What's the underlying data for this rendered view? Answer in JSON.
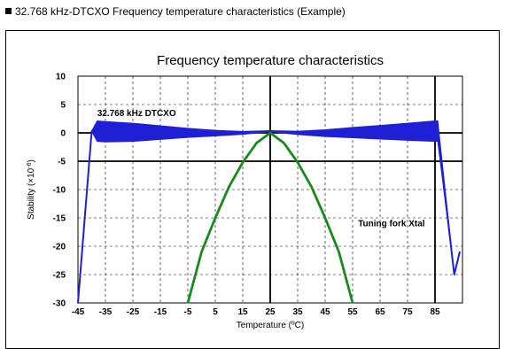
{
  "heading": "32.768 kHz-DTCXO Frequency temperature characteristics (Example)",
  "chart_data": {
    "type": "line",
    "title": "Frequency temperature characteristics",
    "xlabel": "Temperature (ºC)",
    "ylabel_prefix": "Stability (×10",
    "ylabel_exp": "-6",
    "ylabel_suffix": ")",
    "xlim": [
      -45,
      95
    ],
    "ylim": [
      -30,
      10
    ],
    "x_ticks": [
      -45,
      -35,
      -25,
      -15,
      -5,
      5,
      15,
      25,
      35,
      45,
      55,
      65,
      75,
      85
    ],
    "y_ticks": [
      10,
      5,
      0,
      -5,
      -10,
      -15,
      -20,
      -25,
      -30
    ],
    "grid": true,
    "series": [
      {
        "name": "32.768 kHz DTCXO",
        "color": "#1f1fd6",
        "x": [
          -45,
          -40,
          -38,
          -35,
          -25,
          -15,
          -5,
          5,
          15,
          25,
          35,
          45,
          55,
          65,
          75,
          85,
          86,
          92,
          94
        ],
        "y_center": [
          -30,
          0.3,
          0.3,
          0.2,
          0.1,
          0.05,
          0.0,
          -0.05,
          0.0,
          0.3,
          0.0,
          -0.05,
          0.05,
          0.1,
          0.2,
          0.3,
          0.3,
          -25,
          -21
        ],
        "spread": [
          0,
          0,
          1.8,
          1.8,
          1.6,
          1.2,
          0.8,
          0.5,
          0.25,
          0.1,
          0.3,
          0.6,
          0.9,
          1.2,
          1.5,
          1.8,
          1.8,
          0,
          0
        ]
      },
      {
        "name": "Tuning fork Xtal",
        "color": "#1a8a1a",
        "x": [
          -5,
          0,
          5,
          10,
          15,
          20,
          25,
          30,
          35,
          40,
          45,
          50,
          55
        ],
        "y": [
          -30,
          -21,
          -15,
          -9.5,
          -5.2,
          -1.8,
          0,
          -1.8,
          -5.2,
          -9.5,
          -15,
          -21,
          -30
        ]
      }
    ],
    "annotations": [
      {
        "text": "32.768 kHz DTCXO",
        "x": -38,
        "y": 3
      },
      {
        "text": "Tuning fork Xtal",
        "x": 57,
        "y": -16.5
      }
    ]
  }
}
